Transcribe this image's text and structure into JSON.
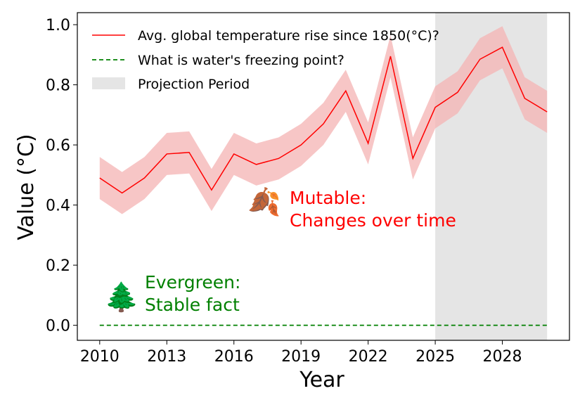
{
  "chart_data": {
    "type": "line",
    "xlabel": "Year",
    "ylabel": "Value (°C)",
    "xlim": [
      2009,
      2031
    ],
    "ylim": [
      -0.05,
      1.04
    ],
    "x_ticks": [
      "2010",
      "2013",
      "2016",
      "2019",
      "2022",
      "2025",
      "2028"
    ],
    "y_ticks": [
      "0.0",
      "0.2",
      "0.4",
      "0.6",
      "0.8",
      "1.0"
    ],
    "grid": false,
    "legend_position": "top-left",
    "x": [
      2010,
      2011,
      2012,
      2013,
      2014,
      2015,
      2016,
      2017,
      2018,
      2019,
      2020,
      2021,
      2022,
      2023,
      2024,
      2025,
      2026,
      2027,
      2028,
      2029,
      2030
    ],
    "series": [
      {
        "name": "Avg. global temperature rise since 1850(°C)?",
        "color": "#ff0000",
        "band_color": "#f4b3b3",
        "style": "solid",
        "values": [
          0.49,
          0.44,
          0.49,
          0.57,
          0.575,
          0.45,
          0.57,
          0.535,
          0.555,
          0.6,
          0.67,
          0.78,
          0.605,
          0.895,
          0.555,
          0.725,
          0.775,
          0.885,
          0.925,
          0.755,
          0.71
        ],
        "band_halfwidth": 0.07
      },
      {
        "name": "What is water's freezing point?",
        "color": "#008000",
        "style": "dashed",
        "values": [
          0,
          0,
          0,
          0,
          0,
          0,
          0,
          0,
          0,
          0,
          0,
          0,
          0,
          0,
          0,
          0,
          0,
          0,
          0,
          0,
          0
        ]
      }
    ],
    "shaded_region": {
      "name": "Projection Period",
      "x_start": 2025,
      "x_end": 2030,
      "color": "#e5e5e5"
    },
    "annotations": [
      {
        "icon": "falling-leaves-icon",
        "glyph": "🍂",
        "lines": [
          "Mutable:",
          "Changes over time"
        ],
        "color": "#ff0000"
      },
      {
        "icon": "evergreen-tree-icon",
        "glyph": "🌲",
        "lines": [
          "Evergreen:",
          "Stable fact"
        ],
        "color": "#008000"
      }
    ]
  }
}
